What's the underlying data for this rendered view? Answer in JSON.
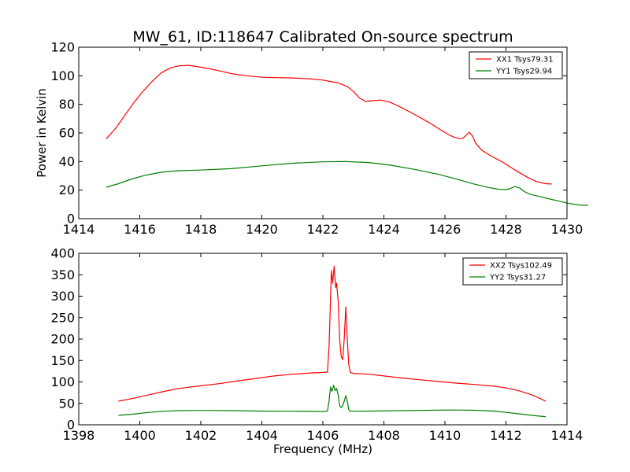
{
  "chart_data": [
    {
      "type": "line",
      "title": "MW_61, ID:118647 Calibrated On-source spectrum",
      "xlabel": "",
      "ylabel": "Power in Kelvin",
      "xlim": [
        1414,
        1430
      ],
      "ylim": [
        0,
        120
      ],
      "xticks": [
        "1414",
        "1416",
        "1418",
        "1420",
        "1422",
        "1424",
        "1426",
        "1428",
        "1430"
      ],
      "yticks": [
        "0",
        "20",
        "40",
        "60",
        "80",
        "100",
        "120"
      ],
      "grid": false,
      "legend_position": "top-right",
      "series": [
        {
          "name": "XX1 Tsys79.31",
          "color": "#ff0000",
          "points": [
            [
              1414.9,
              56
            ],
            [
              1415.2,
              63
            ],
            [
              1415.5,
              72
            ],
            [
              1415.8,
              81
            ],
            [
              1416.1,
              89
            ],
            [
              1416.4,
              96
            ],
            [
              1416.7,
              102
            ],
            [
              1417.0,
              105.5
            ],
            [
              1417.3,
              107
            ],
            [
              1417.6,
              107.3
            ],
            [
              1418.0,
              106
            ],
            [
              1418.5,
              104
            ],
            [
              1419.0,
              101.5
            ],
            [
              1419.5,
              100
            ],
            [
              1420.0,
              99
            ],
            [
              1420.5,
              98.7
            ],
            [
              1421.0,
              98.5
            ],
            [
              1421.5,
              98
            ],
            [
              1422.0,
              97
            ],
            [
              1422.5,
              95
            ],
            [
              1422.8,
              92.5
            ],
            [
              1423.0,
              89
            ],
            [
              1423.2,
              84.5
            ],
            [
              1423.4,
              82
            ],
            [
              1423.6,
              82.5
            ],
            [
              1423.9,
              83
            ],
            [
              1424.2,
              81.5
            ],
            [
              1424.6,
              77.5
            ],
            [
              1425.0,
              73
            ],
            [
              1425.5,
              67
            ],
            [
              1425.8,
              63
            ],
            [
              1426.1,
              59
            ],
            [
              1426.3,
              57
            ],
            [
              1426.5,
              56
            ],
            [
              1426.6,
              56.5
            ],
            [
              1426.7,
              58.5
            ],
            [
              1426.8,
              60.5
            ],
            [
              1426.9,
              58
            ],
            [
              1427.0,
              53
            ],
            [
              1427.2,
              48
            ],
            [
              1427.5,
              44
            ],
            [
              1427.9,
              39.5
            ],
            [
              1428.3,
              34
            ],
            [
              1428.7,
              29
            ],
            [
              1429.0,
              26
            ],
            [
              1429.3,
              24.5
            ],
            [
              1429.5,
              24.3
            ]
          ]
        },
        {
          "name": "YY1 Tsys29.94",
          "color": "#008000",
          "points": [
            [
              1414.9,
              22
            ],
            [
              1415.3,
              24.5
            ],
            [
              1415.7,
              27.5
            ],
            [
              1416.2,
              30.5
            ],
            [
              1416.7,
              32.5
            ],
            [
              1417.2,
              33.5
            ],
            [
              1418.0,
              34
            ],
            [
              1419.0,
              35
            ],
            [
              1420.0,
              37
            ],
            [
              1421.0,
              38.8
            ],
            [
              1422.0,
              39.8
            ],
            [
              1422.7,
              40
            ],
            [
              1423.5,
              39.3
            ],
            [
              1424.2,
              37.5
            ],
            [
              1425.0,
              34.5
            ],
            [
              1425.8,
              31
            ],
            [
              1426.5,
              27
            ],
            [
              1427.0,
              24
            ],
            [
              1427.5,
              21.5
            ],
            [
              1427.8,
              20.5
            ],
            [
              1428.0,
              20.3
            ],
            [
              1428.15,
              21.2
            ],
            [
              1428.3,
              22.5
            ],
            [
              1428.45,
              21.5
            ],
            [
              1428.6,
              19
            ],
            [
              1428.8,
              17
            ],
            [
              1429.1,
              15.5
            ],
            [
              1429.5,
              13.5
            ],
            [
              1429.8,
              12
            ],
            [
              1430.1,
              10.5
            ],
            [
              1430.4,
              9.6
            ],
            [
              1430.7,
              9.4
            ]
          ]
        }
      ]
    },
    {
      "type": "line",
      "title": "",
      "xlabel": "Frequency (MHz)",
      "ylabel": "",
      "xlim": [
        1398,
        1414
      ],
      "ylim": [
        0,
        400
      ],
      "xticks": [
        "1398",
        "1400",
        "1402",
        "1404",
        "1406",
        "1408",
        "1410",
        "1412",
        "1414"
      ],
      "yticks": [
        "0",
        "50",
        "100",
        "150",
        "200",
        "250",
        "300",
        "350",
        "400"
      ],
      "grid": false,
      "legend_position": "top-right",
      "series": [
        {
          "name": "XX2 Tsys102.49",
          "color": "#ff0000",
          "points": [
            [
              1399.3,
              55
            ],
            [
              1399.8,
              62
            ],
            [
              1400.3,
              70
            ],
            [
              1400.8,
              78
            ],
            [
              1401.3,
              85
            ],
            [
              1402.0,
              91
            ],
            [
              1402.6,
              96
            ],
            [
              1403.2,
              102
            ],
            [
              1403.8,
              108
            ],
            [
              1404.4,
              114
            ],
            [
              1405.0,
              118
            ],
            [
              1405.6,
              121
            ],
            [
              1406.0,
              122
            ],
            [
              1406.15,
              123
            ],
            [
              1406.2,
              180
            ],
            [
              1406.25,
              290
            ],
            [
              1406.28,
              360
            ],
            [
              1406.32,
              330
            ],
            [
              1406.37,
              370
            ],
            [
              1406.42,
              320
            ],
            [
              1406.45,
              330
            ],
            [
              1406.5,
              290
            ],
            [
              1406.55,
              200
            ],
            [
              1406.6,
              160
            ],
            [
              1406.65,
              152
            ],
            [
              1406.7,
              200
            ],
            [
              1406.75,
              275
            ],
            [
              1406.8,
              200
            ],
            [
              1406.85,
              140
            ],
            [
              1406.9,
              122
            ],
            [
              1407.0,
              120
            ],
            [
              1407.5,
              118
            ],
            [
              1408.0,
              114
            ],
            [
              1408.6,
              109
            ],
            [
              1409.2,
              105
            ],
            [
              1409.8,
              101
            ],
            [
              1410.4,
              97
            ],
            [
              1411.0,
              94
            ],
            [
              1411.6,
              90
            ],
            [
              1412.0,
              86
            ],
            [
              1412.4,
              80
            ],
            [
              1412.8,
              71
            ],
            [
              1413.1,
              62
            ],
            [
              1413.3,
              55
            ]
          ]
        },
        {
          "name": "YY2 Tsys31.27",
          "color": "#008000",
          "points": [
            [
              1399.3,
              22
            ],
            [
              1399.8,
              25
            ],
            [
              1400.3,
              29
            ],
            [
              1400.8,
              31.5
            ],
            [
              1401.3,
              33
            ],
            [
              1402.0,
              33.5
            ],
            [
              1403.0,
              33
            ],
            [
              1404.0,
              32
            ],
            [
              1405.0,
              31.5
            ],
            [
              1406.0,
              31
            ],
            [
              1406.15,
              32
            ],
            [
              1406.2,
              55
            ],
            [
              1406.25,
              88
            ],
            [
              1406.3,
              78
            ],
            [
              1406.35,
              92
            ],
            [
              1406.4,
              80
            ],
            [
              1406.45,
              85
            ],
            [
              1406.5,
              70
            ],
            [
              1406.55,
              45
            ],
            [
              1406.6,
              40
            ],
            [
              1406.65,
              45
            ],
            [
              1406.7,
              55
            ],
            [
              1406.75,
              68
            ],
            [
              1406.8,
              55
            ],
            [
              1406.85,
              35
            ],
            [
              1406.9,
              31.5
            ],
            [
              1407.5,
              32
            ],
            [
              1408.5,
              33
            ],
            [
              1409.5,
              34
            ],
            [
              1410.3,
              34.5
            ],
            [
              1411.0,
              34
            ],
            [
              1411.6,
              32
            ],
            [
              1412.0,
              29
            ],
            [
              1412.5,
              25
            ],
            [
              1413.0,
              21
            ],
            [
              1413.3,
              19
            ]
          ]
        }
      ]
    }
  ]
}
